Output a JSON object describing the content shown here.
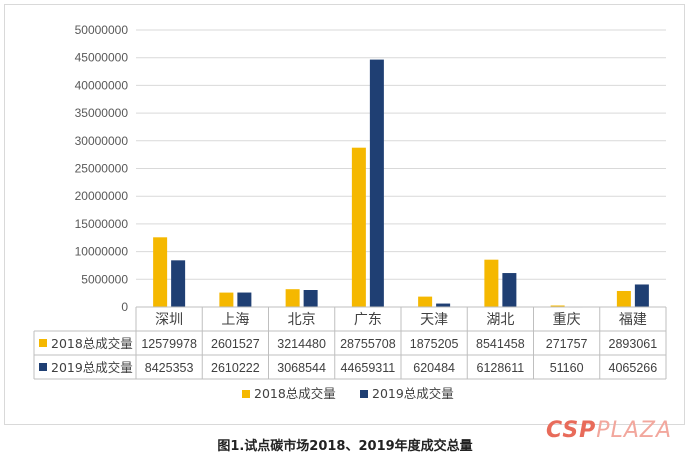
{
  "chart_data": {
    "type": "bar",
    "categories": [
      "深圳",
      "上海",
      "北京",
      "广东",
      "天津",
      "湖北",
      "重庆",
      "福建"
    ],
    "series": [
      {
        "name": "2018总成交量",
        "values": [
          12579978,
          2601527,
          3214480,
          28755708,
          1875205,
          8541458,
          271757,
          2893061
        ],
        "color": "#f5b800"
      },
      {
        "name": "2019总成交量",
        "values": [
          8425353,
          2610222,
          3068544,
          44659311,
          620484,
          6128611,
          51160,
          4065266
        ],
        "color": "#1f3f73"
      }
    ],
    "ylim": [
      0,
      50000000
    ],
    "yticks": [
      "0",
      "5000000",
      "10000000",
      "15000000",
      "20000000",
      "25000000",
      "30000000",
      "35000000",
      "40000000",
      "45000000",
      "50000000"
    ],
    "grid": true,
    "legend_position": "bottom",
    "data_table": true
  },
  "caption": "图1.试点碳市场2018、2019年度成交总量",
  "watermark": {
    "part1": "CSP",
    "part2": "PLAZA"
  }
}
